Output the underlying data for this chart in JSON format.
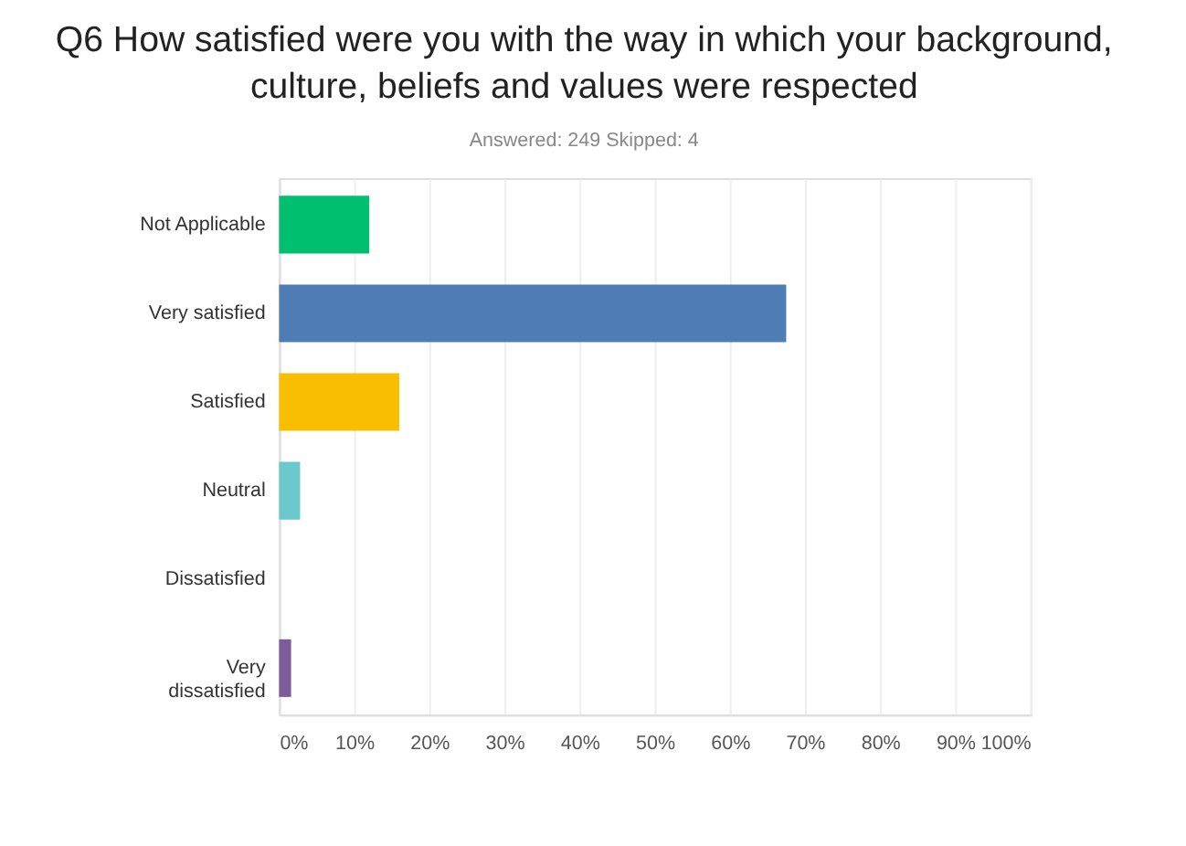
{
  "chart_data": {
    "type": "bar",
    "orientation": "horizontal",
    "title": "Q6 How satisfied were you with the way in which your background,\nculture, beliefs and values were respected",
    "subtitle": "Answered: 249    Skipped: 4",
    "categories": [
      "Not Applicable",
      "Very satisfied",
      "Satisfied",
      "Neutral",
      "Dissatisfied",
      "Very dissatisfied"
    ],
    "values": [
      12,
      67.5,
      16,
      2.8,
      0,
      1.6
    ],
    "colors": [
      "#00bf6f",
      "#507cb6",
      "#f9be00",
      "#6bc8cd",
      "#ff8b4f",
      "#7d5c9b"
    ],
    "xlim": [
      0,
      100
    ],
    "xticks": [
      {
        "value": 0,
        "label": "0%"
      },
      {
        "value": 10,
        "label": "10%"
      },
      {
        "value": 20,
        "label": "20%"
      },
      {
        "value": 30,
        "label": "30%"
      },
      {
        "value": 40,
        "label": "40%"
      },
      {
        "value": 50,
        "label": "50%"
      },
      {
        "value": 60,
        "label": "60%"
      },
      {
        "value": 70,
        "label": "70%"
      },
      {
        "value": 80,
        "label": "80%"
      },
      {
        "value": 90,
        "label": "90%"
      },
      {
        "value": 100,
        "label": "100%"
      }
    ],
    "grid": "x"
  }
}
